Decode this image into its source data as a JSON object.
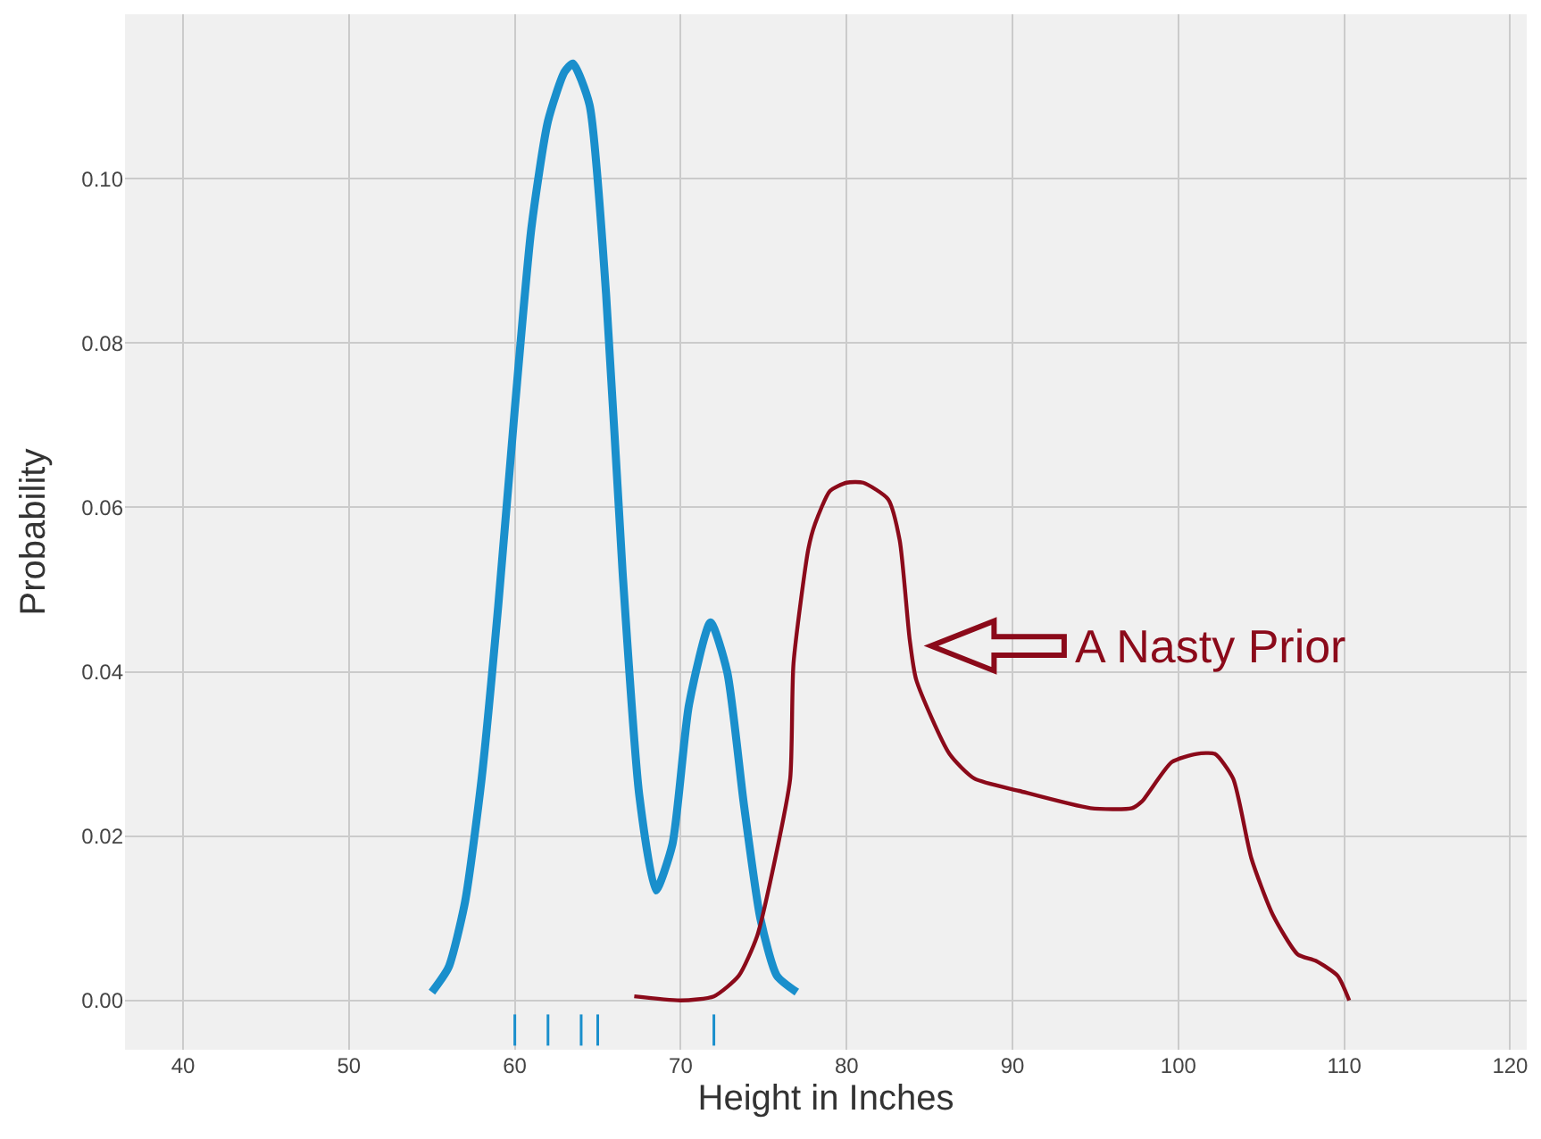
{
  "chart_data": {
    "type": "line",
    "xlabel": "Height in Inches",
    "ylabel": "Probability",
    "xlim": [
      36.5,
      121
    ],
    "ylim": [
      -0.006,
      0.12
    ],
    "xticks": [
      40,
      50,
      60,
      70,
      80,
      90,
      100,
      110,
      120
    ],
    "yticks": [
      {
        "value": 0,
        "label": "0.00"
      },
      {
        "value": 0.02,
        "label": "0.02"
      },
      {
        "value": 0.04,
        "label": "0.04"
      },
      {
        "value": 0.06,
        "label": "0.06"
      },
      {
        "value": 0.08,
        "label": "0.08"
      },
      {
        "value": 0.1,
        "label": "0.10"
      }
    ],
    "grid": true,
    "series": [
      {
        "color": "#1a8fcc",
        "x": [
          55,
          56,
          57,
          58,
          59,
          60,
          61,
          62,
          63,
          63.5,
          64.5,
          65.5,
          66.5,
          67.5,
          68.5,
          69.5,
          70.5,
          71.8,
          72.8,
          73.8,
          74.8,
          75.8,
          77
        ],
        "values": [
          0.001,
          0.004,
          0.012,
          0.027,
          0.048,
          0.072,
          0.094,
          0.107,
          0.113,
          0.114,
          0.109,
          0.086,
          0.052,
          0.025,
          0.0134,
          0.019,
          0.036,
          0.046,
          0.04,
          0.024,
          0.01,
          0.003,
          0.001
        ]
      },
      {
        "color": "#8b0a1a",
        "x": [
          67.2,
          70,
          72,
          73.5,
          74.6,
          75.7,
          76.6,
          76.8,
          77.7,
          78.1,
          79.0,
          80,
          81,
          82.5,
          83.2,
          83.8,
          84.2,
          86.2,
          87.7,
          90.4,
          94.7,
          97.2,
          97.8,
          99.6,
          101.1,
          102.2,
          103.3,
          104.4,
          105.7,
          107.2,
          108.3,
          109.6,
          110.3
        ],
        "values": [
          0.0005,
          0,
          0.0005,
          0.003,
          0.0078,
          0.0173,
          0.027,
          0.041,
          0.055,
          0.058,
          0.062,
          0.063,
          0.063,
          0.061,
          0.056,
          0.044,
          0.039,
          0.03,
          0.027,
          0.0255,
          0.0234,
          0.0234,
          0.0242,
          0.029,
          0.03,
          0.03,
          0.027,
          0.0173,
          0.0104,
          0.0056,
          0.0048,
          0.003,
          0
        ]
      },
      {
        "color": "#1a8fcc",
        "x": [
          60,
          60,
          61,
          62,
          62,
          63,
          64,
          64,
          64.5,
          65,
          65,
          68,
          72,
          72
        ],
        "values": [
          -0.0017,
          -0.0055,
          null,
          -0.0017,
          -0.0055,
          null,
          -0.0017,
          -0.0055,
          null,
          -0.0017,
          -0.0055,
          null,
          -0.0017,
          -0.0055
        ]
      }
    ],
    "annotations": [
      "A Nasty Prior"
    ]
  }
}
